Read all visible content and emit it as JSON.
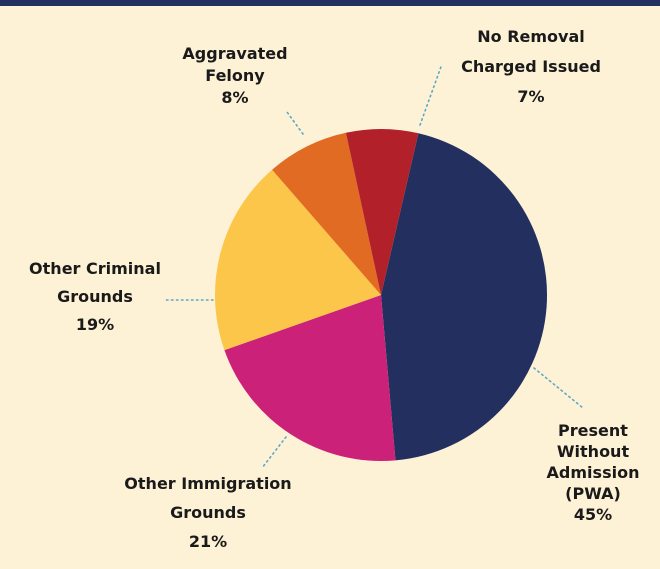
{
  "chart_data": {
    "type": "pie",
    "slices": [
      {
        "label": [
          "Present",
          "Without",
          "Admission",
          "(PWA)"
        ],
        "value": 45,
        "pct": "45%",
        "color": "#23305f"
      },
      {
        "label": [
          "Other Immigration",
          "Grounds"
        ],
        "value": 21,
        "pct": "21%",
        "color": "#cc2179"
      },
      {
        "label": [
          "Other Criminal",
          "Grounds"
        ],
        "value": 19,
        "pct": "19%",
        "color": "#fcc64a"
      },
      {
        "label": [
          "Aggravated",
          "Felony"
        ],
        "value": 8,
        "pct": "8%",
        "color": "#e26b24"
      },
      {
        "label": [
          "No Removal",
          "Charged Issued"
        ],
        "value": 7,
        "pct": "7%",
        "color": "#b2202a"
      }
    ],
    "start_angle_deg": 13,
    "direction": "clockwise"
  },
  "colors": {
    "background": "#fdf1d6",
    "top_bar": "#23305f",
    "leader_line": "#5aa9c6"
  }
}
